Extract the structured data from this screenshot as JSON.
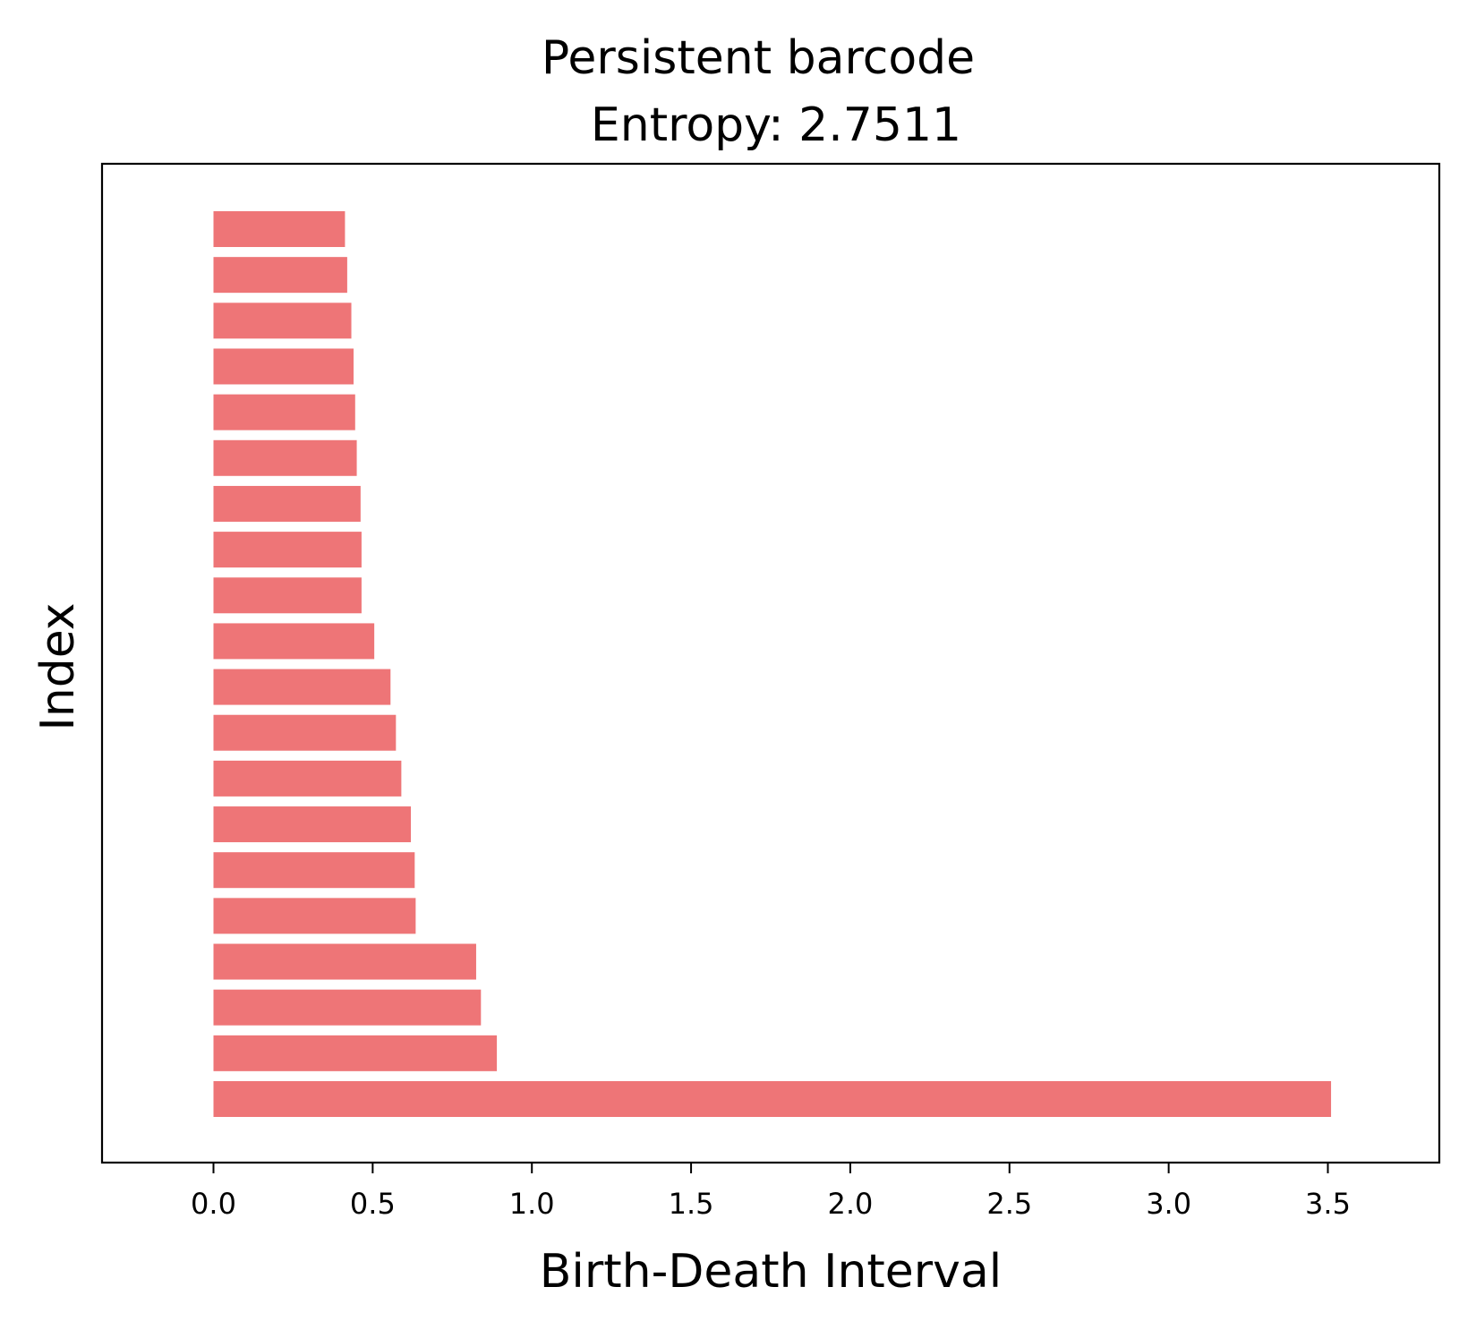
{
  "chart_data": {
    "type": "bar",
    "orientation": "horizontal",
    "title": "Persistent barcode",
    "subtitle": "Entropy: 2.7511",
    "xlabel": "Birth-Death Interval",
    "ylabel": "Index",
    "xlim": [
      -0.35,
      3.85
    ],
    "xticks": [
      "0.0",
      "0.5",
      "1.0",
      "1.5",
      "2.0",
      "2.5",
      "3.0",
      "3.5"
    ],
    "grid": false,
    "bar_color": "#ee7577",
    "bars": [
      {
        "start": 0,
        "end": 3.51
      },
      {
        "start": 0,
        "end": 0.89
      },
      {
        "start": 0,
        "end": 0.84
      },
      {
        "start": 0,
        "end": 0.825
      },
      {
        "start": 0,
        "end": 0.635
      },
      {
        "start": 0,
        "end": 0.632
      },
      {
        "start": 0,
        "end": 0.62
      },
      {
        "start": 0,
        "end": 0.59
      },
      {
        "start": 0,
        "end": 0.573
      },
      {
        "start": 0,
        "end": 0.556
      },
      {
        "start": 0,
        "end": 0.505
      },
      {
        "start": 0,
        "end": 0.465
      },
      {
        "start": 0,
        "end": 0.465
      },
      {
        "start": 0,
        "end": 0.462
      },
      {
        "start": 0,
        "end": 0.45
      },
      {
        "start": 0,
        "end": 0.445
      },
      {
        "start": 0,
        "end": 0.44
      },
      {
        "start": 0,
        "end": 0.433
      },
      {
        "start": 0,
        "end": 0.42
      },
      {
        "start": 0,
        "end": 0.413
      }
    ]
  }
}
